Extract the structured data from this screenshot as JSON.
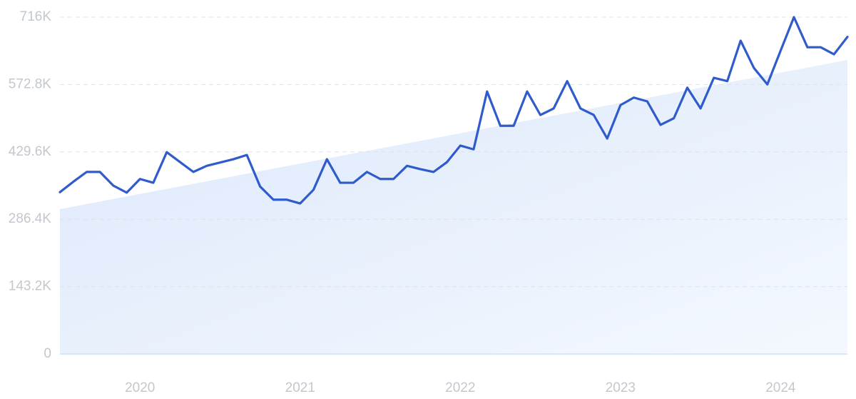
{
  "chart_data": {
    "type": "line",
    "x": [
      2019.5,
      2019.583,
      2019.667,
      2019.75,
      2019.833,
      2019.917,
      2020,
      2020.083,
      2020.167,
      2020.25,
      2020.333,
      2020.417,
      2020.5,
      2020.583,
      2020.667,
      2020.75,
      2020.833,
      2020.917,
      2021,
      2021.083,
      2021.167,
      2021.25,
      2021.333,
      2021.417,
      2021.5,
      2021.583,
      2021.667,
      2021.75,
      2021.833,
      2021.917,
      2022,
      2022.083,
      2022.167,
      2022.25,
      2022.333,
      2022.417,
      2022.5,
      2022.583,
      2022.667,
      2022.75,
      2022.833,
      2022.917,
      2023,
      2023.083,
      2023.167,
      2023.25,
      2023.333,
      2023.417,
      2023.5,
      2023.583,
      2023.667,
      2023.75,
      2023.833,
      2023.917,
      2024,
      2024.083,
      2024.167,
      2024.25,
      2024.333,
      2024.417
    ],
    "series": [
      {
        "color": "#2f5bcc",
        "values": [
          344000,
          366000,
          387000,
          387000,
          358000,
          343000,
          372000,
          364000,
          429000,
          408000,
          387000,
          400000,
          407000,
          414000,
          423000,
          356000,
          328000,
          328000,
          320000,
          349000,
          414000,
          364000,
          364000,
          387000,
          372000,
          372000,
          400000,
          393000,
          387000,
          408000,
          443000,
          435000,
          558000,
          485000,
          485000,
          558000,
          508000,
          522000,
          580000,
          522000,
          508000,
          458000,
          529000,
          545000,
          537000,
          487000,
          501000,
          566000,
          522000,
          587000,
          580000,
          666000,
          608000,
          573000,
          645000,
          716000,
          652000,
          652000,
          637000,
          674000
        ]
      }
    ],
    "trend": {
      "x": [
        2019.5,
        2024.417
      ],
      "values": [
        308000,
        625000
      ],
      "color": "#dbe8fb"
    },
    "xlim": [
      2019.5,
      2024.417
    ],
    "xticks": [
      2020,
      2021,
      2022,
      2023,
      2024
    ],
    "ylim": [
      0,
      716000
    ],
    "yticks": [
      0,
      {
        "value": 143200,
        "label": "143.2K"
      },
      {
        "value": 286400,
        "label": "286.4K"
      },
      {
        "value": 429600,
        "label": "429.6K"
      },
      {
        "value": 572800,
        "label": "572.8K"
      },
      {
        "value": 716000,
        "label": "716K"
      }
    ],
    "grid": true
  }
}
